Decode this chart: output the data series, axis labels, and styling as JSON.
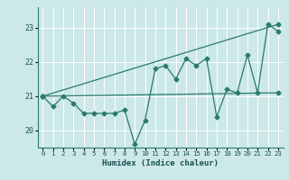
{
  "xlabel": "Humidex (Indice chaleur)",
  "bg_color": "#cce8e8",
  "grid_color": "#ffffff",
  "line_color": "#2a7a6a",
  "xlim": [
    -0.5,
    23.5
  ],
  "ylim": [
    19.5,
    23.6
  ],
  "yticks": [
    20,
    21,
    22,
    23
  ],
  "xticks": [
    0,
    1,
    2,
    3,
    4,
    5,
    6,
    7,
    8,
    9,
    10,
    11,
    12,
    13,
    14,
    15,
    16,
    17,
    18,
    19,
    20,
    21,
    22,
    23
  ],
  "line1_x": [
    0,
    1,
    2,
    3,
    4,
    5,
    6,
    7,
    8,
    9,
    10,
    11,
    12,
    13,
    14,
    15,
    16,
    17,
    18,
    19,
    20,
    21,
    22,
    23
  ],
  "line1_y": [
    21.0,
    20.7,
    21.0,
    20.8,
    20.5,
    20.5,
    20.5,
    20.5,
    20.6,
    19.6,
    20.3,
    21.8,
    21.9,
    21.5,
    22.1,
    21.9,
    22.1,
    20.4,
    21.2,
    21.1,
    22.2,
    21.1,
    23.1,
    22.9
  ],
  "line2_x": [
    0,
    23
  ],
  "line2_y": [
    21.0,
    21.1
  ],
  "line3_x": [
    0,
    23
  ],
  "line3_y": [
    21.0,
    23.1
  ]
}
